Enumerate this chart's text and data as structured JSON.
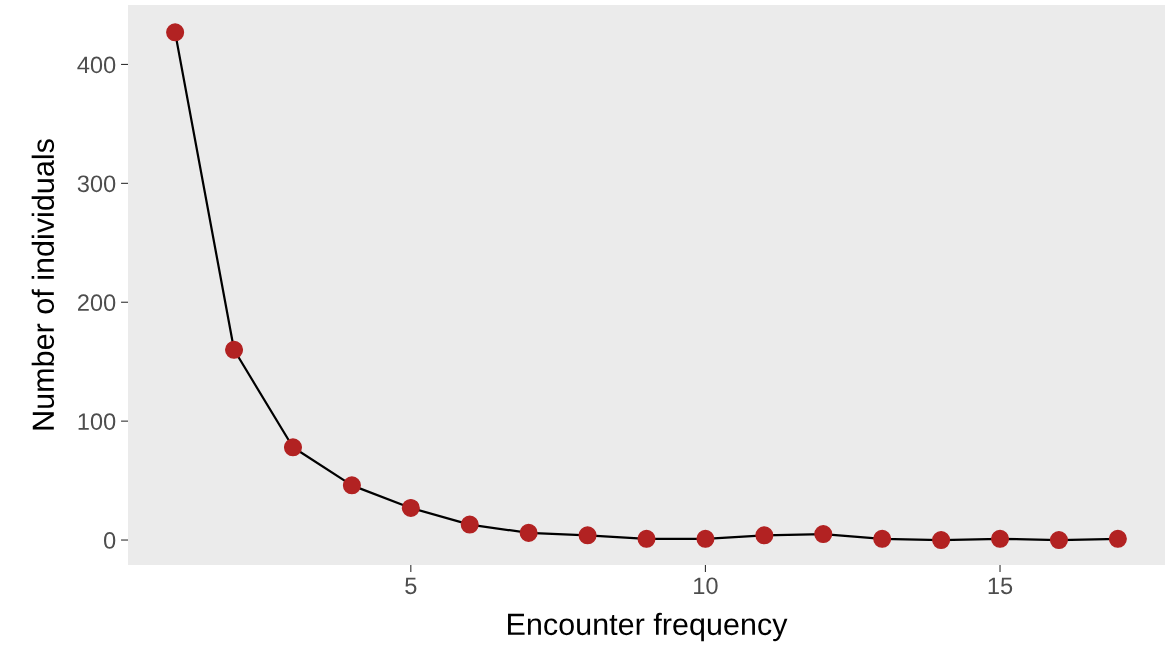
{
  "chart_data": {
    "type": "line",
    "xlabel": "Encounter frequency",
    "ylabel": "Number of individuals",
    "x": [
      1,
      2,
      3,
      4,
      5,
      6,
      7,
      8,
      9,
      10,
      11,
      12,
      13,
      14,
      15,
      16,
      17
    ],
    "series": [
      {
        "color": "#b22222",
        "values": [
          427,
          160,
          78,
          46,
          27,
          13,
          6,
          4,
          1,
          1,
          4,
          5,
          1,
          0,
          1,
          0,
          1
        ]
      }
    ],
    "xlim": [
      0.2,
      17.8
    ],
    "ylim": [
      -21,
      450
    ],
    "xticks": [
      5,
      10,
      15
    ],
    "yticks": [
      0,
      100,
      200,
      300,
      400
    ],
    "grid": false,
    "legend": false,
    "marker": "circle",
    "line_style": "solid"
  }
}
